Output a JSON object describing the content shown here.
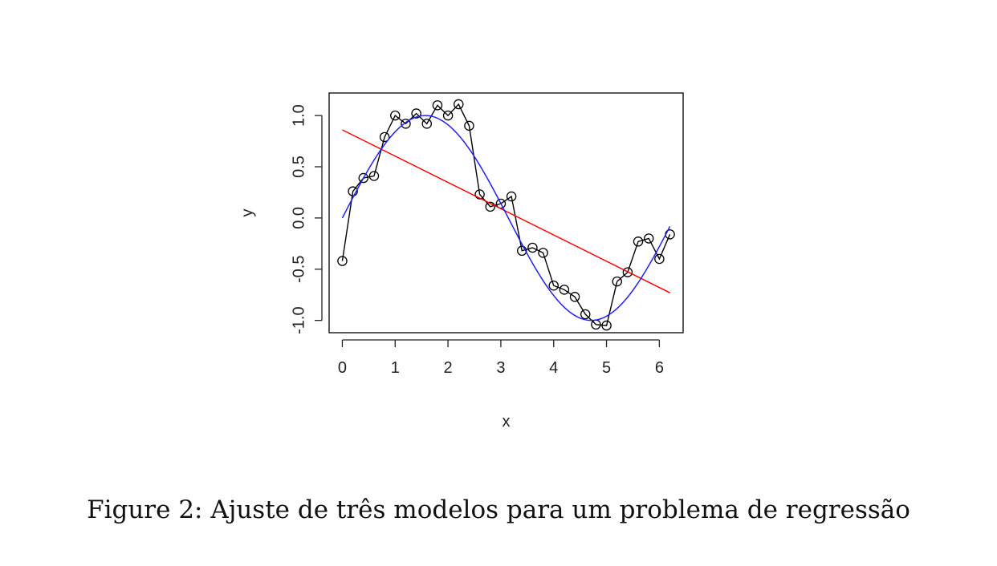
{
  "chart_data": {
    "type": "scatter",
    "xlabel": "x",
    "ylabel": "y",
    "xlim": [
      -0.25,
      6.45
    ],
    "ylim": [
      -1.12,
      1.22
    ],
    "x_ticks": [
      0,
      1,
      2,
      3,
      4,
      5,
      6
    ],
    "y_ticks": [
      -1.0,
      -0.5,
      0.0,
      0.5,
      1.0
    ],
    "x_tick_labels": [
      "0",
      "1",
      "2",
      "3",
      "4",
      "5",
      "6"
    ],
    "y_tick_labels": [
      "-1.0",
      "-0.5",
      "0.0",
      "0.5",
      "1.0"
    ],
    "grid": false,
    "series": [
      {
        "kind": "points-connected",
        "color": "#000000",
        "x": [
          0,
          0.2,
          0.4,
          0.6,
          0.8,
          1.0,
          1.2,
          1.4,
          1.6,
          1.8,
          2.0,
          2.2,
          2.4,
          2.6,
          2.8,
          3.0,
          3.2,
          3.4,
          3.6,
          3.8,
          4.0,
          4.2,
          4.4,
          4.6,
          4.8,
          5.0,
          5.2,
          5.4,
          5.6,
          5.8,
          6.0,
          6.2
        ],
        "y": [
          -0.42,
          0.26,
          0.39,
          0.41,
          0.79,
          1.0,
          0.92,
          1.02,
          0.92,
          1.1,
          1.0,
          1.11,
          0.9,
          0.23,
          0.11,
          0.14,
          0.21,
          -0.32,
          -0.29,
          -0.34,
          -0.66,
          -0.7,
          -0.77,
          -0.94,
          -1.04,
          -1.05,
          -0.62,
          -0.53,
          -0.23,
          -0.2,
          -0.4,
          -0.16
        ]
      },
      {
        "kind": "line",
        "color": "#ff0000",
        "x": [
          0,
          6.2
        ],
        "y": [
          0.86,
          -0.73
        ]
      },
      {
        "kind": "function",
        "color": "#1f1fff",
        "function": "sin",
        "xmin": 0,
        "xmax": 6.2
      }
    ]
  },
  "caption": "Figure 2: Ajuste de três modelos para um problema de regressão"
}
